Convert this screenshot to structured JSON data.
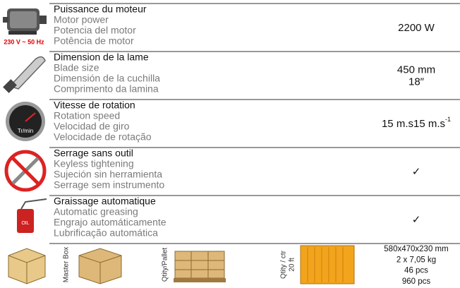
{
  "rows": [
    {
      "title": "Puissance du moteur",
      "lines": [
        "Motor power",
        "Potencia del motor",
        "Potência de motor"
      ],
      "values": [
        "2200 W"
      ],
      "icon_label": "230 V ~ 50 Hz"
    },
    {
      "title": "Dimension de la lame",
      "lines": [
        "Blade size",
        "Dimensión de la cuchilla",
        "Comprimento da lamina"
      ],
      "values": [
        "450 mm",
        "18″"
      ]
    },
    {
      "title": "Vitesse de rotation",
      "lines": [
        "Rotation speed",
        "Velocidad de giro",
        "Velocidade de rotação"
      ],
      "values": [
        "15 m.s"
      ],
      "value_sup": "-1",
      "icon_label": "Tr/min"
    },
    {
      "title": "Serrage sans outil",
      "lines": [
        "Keyless tightening",
        "Sujeción sin herramienta",
        "Serrage sem instrumento"
      ],
      "values": [
        "✓"
      ]
    },
    {
      "title": "Graissage automatique",
      "lines": [
        "Automatic greasing",
        "Engrajo automáticamente",
        "Lubrificação automática"
      ],
      "values": [
        "✓"
      ],
      "icon_label": "OIL"
    }
  ],
  "packaging": {
    "labels": [
      "Master Box",
      "Qtity/Pallet",
      "Qtity / ctr",
      "20 ft"
    ],
    "values": [
      "580x470x230 mm",
      "2 x 7,05 kg",
      "46 pcs",
      "960 pcs"
    ]
  }
}
